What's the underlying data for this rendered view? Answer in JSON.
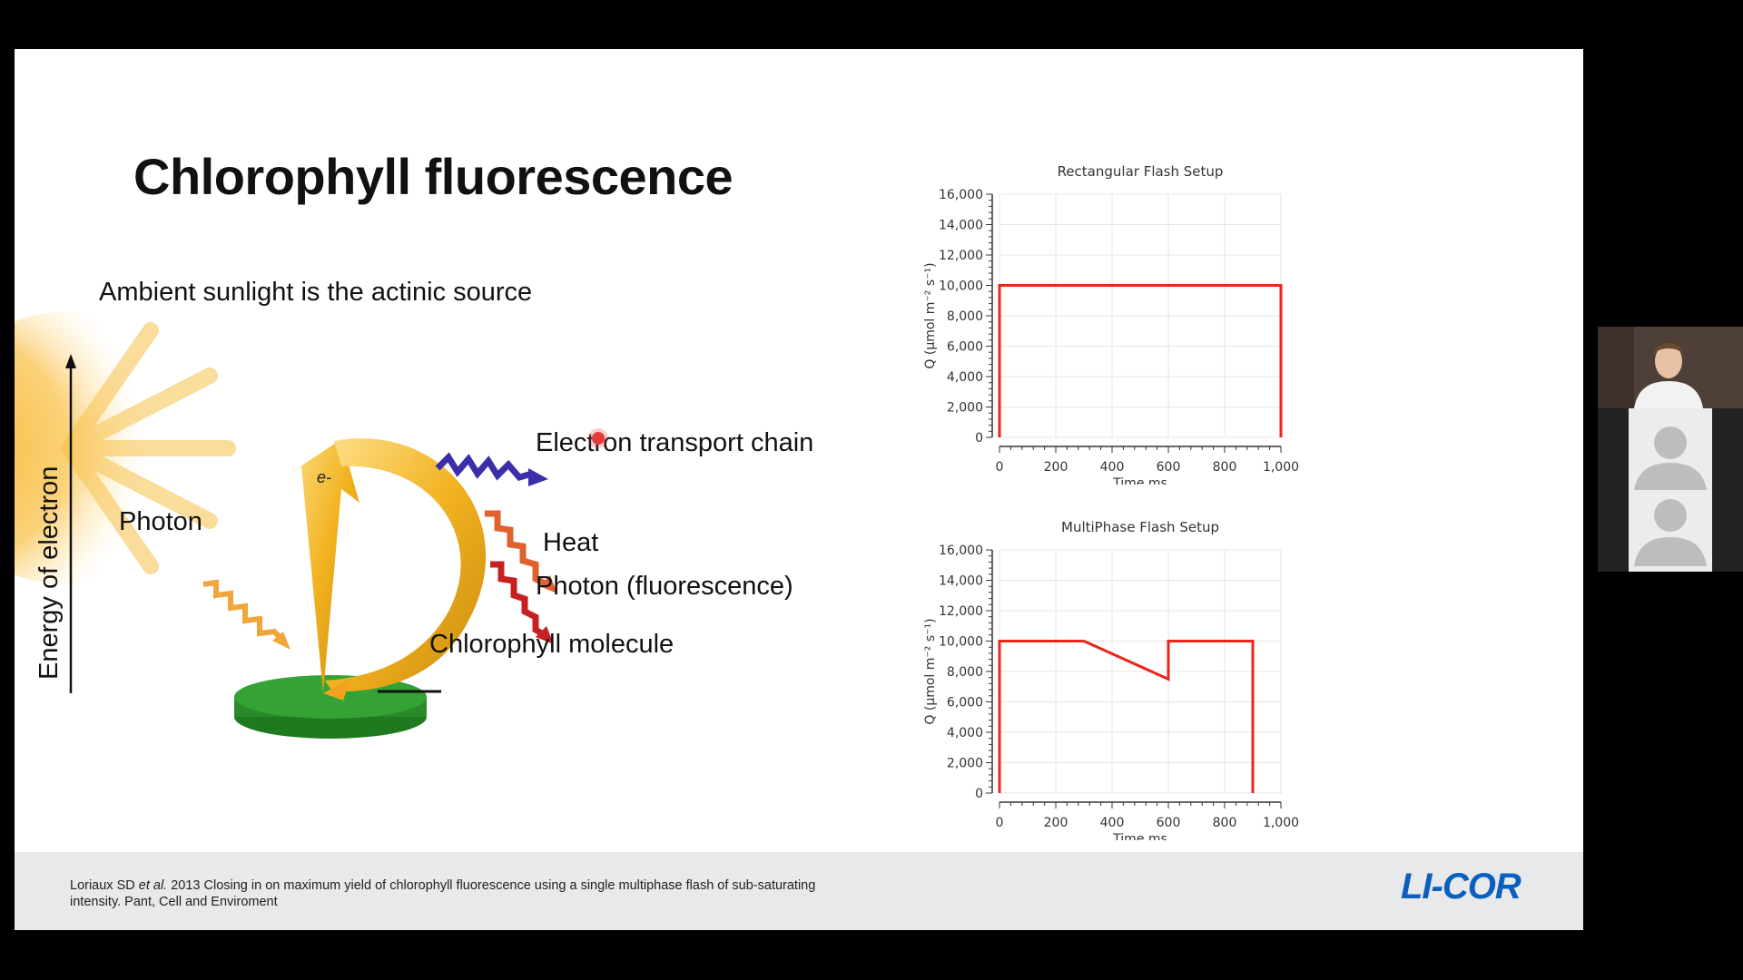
{
  "slide": {
    "title": "Chlorophyll fluorescence",
    "subtitle": "Ambient sunlight is the actinic source",
    "diagram": {
      "y_axis_label": "Energy of electron",
      "electron_label": "e-",
      "labels": {
        "photon": "Photon",
        "electron_transport": "Electron transport chain",
        "heat": "Heat",
        "fluorescence": "Photon (fluorescence)",
        "molecule": "Chlorophyll molecule"
      }
    },
    "citation": {
      "authors": "Loriaux SD ",
      "etal": "et al.",
      "rest": " 2013 Closing in on maximum yield of chlorophyll fluorescence using a single multiphase flash of sub-saturating intensity. Pant, Cell and Enviroment"
    },
    "logo": "LI-COR",
    "colors": {
      "flash_line": "#e8261a",
      "logo": "#0a5fbf",
      "photon_arrow": "#f0a63a",
      "etc_arrow": "#3a2fa8",
      "heat_arrow": "#e06030",
      "fluorescence_arrow": "#c82020",
      "chlorophyll": "#2e8b2e"
    }
  },
  "chart_data": [
    {
      "type": "line",
      "title": "Rectangular Flash Setup",
      "xlabel": "Time ms",
      "ylabel": "Q (µmol m⁻² s⁻¹)",
      "xlim": [
        0,
        1000
      ],
      "ylim": [
        0,
        16000
      ],
      "xticks": [
        "0",
        "200",
        "400",
        "600",
        "800",
        "1,000"
      ],
      "yticks": [
        "0",
        "2,000",
        "4,000",
        "6,000",
        "8,000",
        "10,000",
        "12,000",
        "14,000",
        "16,000"
      ],
      "grid": true,
      "series": [
        {
          "x": [
            0,
            0,
            1000,
            1000
          ],
          "y": [
            0,
            10000,
            10000,
            0
          ]
        }
      ]
    },
    {
      "type": "line",
      "title": "MultiPhase Flash Setup",
      "xlabel": "Time ms",
      "ylabel": "Q (µmol m⁻² s⁻¹)",
      "xlim": [
        0,
        1000
      ],
      "ylim": [
        0,
        16000
      ],
      "xticks": [
        "0",
        "200",
        "400",
        "600",
        "800",
        "1,000"
      ],
      "yticks": [
        "0",
        "2,000",
        "4,000",
        "6,000",
        "8,000",
        "10,000",
        "12,000",
        "14,000",
        "16,000"
      ],
      "grid": true,
      "series": [
        {
          "x": [
            0,
            0,
            300,
            600,
            600,
            900,
            900
          ],
          "y": [
            0,
            10000,
            10000,
            7500,
            10000,
            10000,
            0
          ]
        }
      ]
    }
  ],
  "video": {
    "participants": [
      {
        "role": "presenter-camera"
      },
      {
        "role": "participant-placeholder"
      },
      {
        "role": "participant-placeholder"
      }
    ]
  }
}
